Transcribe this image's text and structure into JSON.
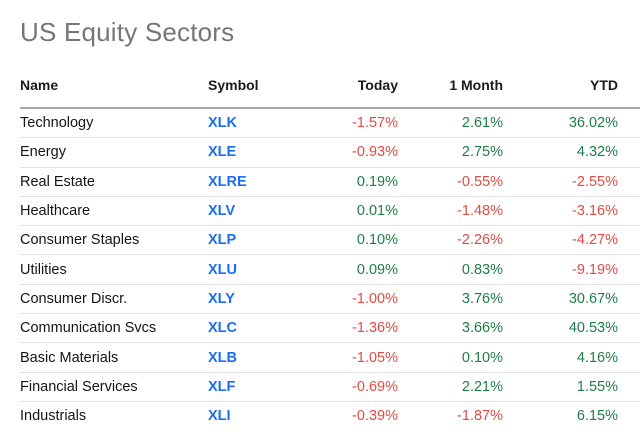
{
  "page": {
    "title": "US Equity Sectors"
  },
  "colors": {
    "positive": "#1f7d48",
    "negative": "#de4c44",
    "symbol_link": "#1a6ef5",
    "title_gray": "#76767a",
    "header_text": "#1b1b1d",
    "row_text": "#151517",
    "header_divider": "#a8a8ac",
    "row_divider": "#e1e1e3"
  },
  "table": {
    "columns": [
      {
        "key": "name",
        "label": "Name",
        "align": "left"
      },
      {
        "key": "symbol",
        "label": "Symbol",
        "align": "left"
      },
      {
        "key": "today",
        "label": "Today",
        "align": "right"
      },
      {
        "key": "month",
        "label": "1 Month",
        "align": "right"
      },
      {
        "key": "ytd",
        "label": "YTD",
        "align": "right"
      }
    ],
    "rows": [
      {
        "name": "Technology",
        "symbol": "XLK",
        "today": "-1.57%",
        "month": "2.61%",
        "ytd": "36.02%"
      },
      {
        "name": "Energy",
        "symbol": "XLE",
        "today": "-0.93%",
        "month": "2.75%",
        "ytd": "4.32%"
      },
      {
        "name": "Real Estate",
        "symbol": "XLRE",
        "today": "0.19%",
        "month": "-0.55%",
        "ytd": "-2.55%"
      },
      {
        "name": "Healthcare",
        "symbol": "XLV",
        "today": "0.01%",
        "month": "-1.48%",
        "ytd": "-3.16%"
      },
      {
        "name": "Consumer Staples",
        "symbol": "XLP",
        "today": "0.10%",
        "month": "-2.26%",
        "ytd": "-4.27%"
      },
      {
        "name": "Utilities",
        "symbol": "XLU",
        "today": "0.09%",
        "month": "0.83%",
        "ytd": "-9.19%"
      },
      {
        "name": "Consumer Discr.",
        "symbol": "XLY",
        "today": "-1.00%",
        "month": "3.76%",
        "ytd": "30.67%"
      },
      {
        "name": "Communication Svcs",
        "symbol": "XLC",
        "today": "-1.36%",
        "month": "3.66%",
        "ytd": "40.53%"
      },
      {
        "name": "Basic Materials",
        "symbol": "XLB",
        "today": "-1.05%",
        "month": "0.10%",
        "ytd": "4.16%"
      },
      {
        "name": "Financial Services",
        "symbol": "XLF",
        "today": "-0.69%",
        "month": "2.21%",
        "ytd": "1.55%"
      },
      {
        "name": "Industrials",
        "symbol": "XLI",
        "today": "-0.39%",
        "month": "-1.87%",
        "ytd": "6.15%"
      }
    ]
  }
}
